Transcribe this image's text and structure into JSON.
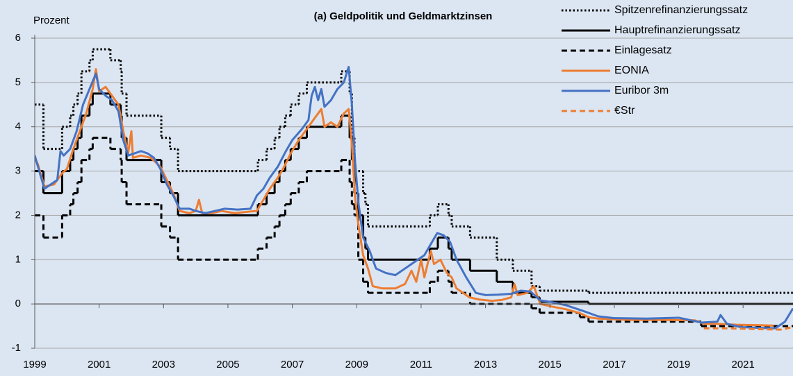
{
  "chart_data": {
    "type": "line",
    "title": "(a) Geldpolitik und Geldmarktzinsen",
    "y_label": "Prozent",
    "xlim": [
      1999,
      2022.55
    ],
    "xticks": [
      1999,
      2001,
      2003,
      2005,
      2007,
      2009,
      2011,
      2013,
      2015,
      2017,
      2019,
      2021
    ],
    "ylim": [
      -1,
      6
    ],
    "yticks": [
      -1,
      0,
      1,
      2,
      3,
      4,
      5,
      6
    ],
    "grid": true,
    "legend": "top-right",
    "series": [
      {
        "name": "Spitzenrefinanzierungssatz",
        "color": "#000000",
        "style": "dotted",
        "step": true,
        "x": [
          1999,
          1999.27,
          1999.85,
          2000.1,
          2000.2,
          2000.33,
          2000.45,
          2000.7,
          2000.8,
          2001.35,
          2001.67,
          2001.7,
          2001.85,
          2002.93,
          2003.2,
          2003.45,
          2005.93,
          2006.2,
          2006.45,
          2006.6,
          2006.78,
          2006.95,
          2007.2,
          2007.45,
          2008.52,
          2008.78,
          2008.85,
          2008.93,
          2009.2,
          2009.27,
          2009.35,
          2011.27,
          2011.52,
          2011.85,
          2011.95,
          2012.52,
          2013.35,
          2013.85,
          2014.43,
          2014.68,
          2016.2
        ],
        "values": [
          4.5,
          3.5,
          4.0,
          4.25,
          4.5,
          4.75,
          5.25,
          5.5,
          5.75,
          5.5,
          5.25,
          4.75,
          4.25,
          3.75,
          3.5,
          3.0,
          3.25,
          3.5,
          3.75,
          4.0,
          4.25,
          4.5,
          4.75,
          5.0,
          5.25,
          4.75,
          3.75,
          3.0,
          2.5,
          2.25,
          1.75,
          2.0,
          2.25,
          2.0,
          1.75,
          1.5,
          1.0,
          0.75,
          0.4,
          0.3,
          0.25
        ]
      },
      {
        "name": "Hauptrefinanzierungssatz",
        "color": "#000000",
        "style": "solid",
        "step": true,
        "x": [
          1999,
          1999.27,
          1999.85,
          2000.1,
          2000.2,
          2000.33,
          2000.45,
          2000.7,
          2000.8,
          2001.35,
          2001.67,
          2001.7,
          2001.85,
          2002.93,
          2003.2,
          2003.45,
          2005.93,
          2006.2,
          2006.45,
          2006.6,
          2006.78,
          2006.95,
          2007.2,
          2007.45,
          2008.52,
          2008.78,
          2008.85,
          2008.93,
          2009.05,
          2009.2,
          2009.27,
          2009.35,
          2011.27,
          2011.52,
          2011.85,
          2011.95,
          2012.52,
          2013.35,
          2013.85,
          2014.43,
          2014.68,
          2016.2
        ],
        "values": [
          3.0,
          2.5,
          3.0,
          3.25,
          3.5,
          3.75,
          4.25,
          4.5,
          4.75,
          4.5,
          4.25,
          3.75,
          3.25,
          2.75,
          2.5,
          2.0,
          2.25,
          2.5,
          2.75,
          3.0,
          3.25,
          3.5,
          3.75,
          4.0,
          4.25,
          3.75,
          3.25,
          2.5,
          2.0,
          1.5,
          1.25,
          1.0,
          1.25,
          1.5,
          1.25,
          1.0,
          0.75,
          0.5,
          0.25,
          0.15,
          0.05,
          0.0
        ]
      },
      {
        "name": "Einlagesatz",
        "color": "#000000",
        "style": "dashed",
        "step": true,
        "x": [
          1999,
          1999.27,
          1999.85,
          2000.1,
          2000.2,
          2000.33,
          2000.45,
          2000.7,
          2000.8,
          2001.35,
          2001.67,
          2001.7,
          2001.85,
          2002.93,
          2003.2,
          2003.45,
          2005.93,
          2006.2,
          2006.45,
          2006.6,
          2006.78,
          2006.95,
          2007.2,
          2007.45,
          2008.52,
          2008.78,
          2008.85,
          2008.93,
          2009.05,
          2009.2,
          2009.35,
          2011.27,
          2011.52,
          2011.85,
          2011.95,
          2012.52,
          2014.43,
          2014.68,
          2015.93,
          2016.2,
          2019.7
        ],
        "values": [
          2.0,
          1.5,
          2.0,
          2.25,
          2.5,
          2.75,
          3.25,
          3.5,
          3.75,
          3.5,
          3.25,
          2.75,
          2.25,
          1.75,
          1.5,
          1.0,
          1.25,
          1.5,
          1.75,
          2.0,
          2.25,
          2.5,
          2.75,
          3.0,
          3.25,
          2.75,
          2.25,
          2.0,
          1.0,
          0.5,
          0.25,
          0.5,
          0.75,
          0.5,
          0.25,
          0.0,
          -0.1,
          -0.2,
          -0.3,
          -0.4,
          -0.5
        ]
      },
      {
        "name": "EONIA",
        "color": "#ed7d31",
        "style": "solid",
        "step": false,
        "x": [
          1999.0,
          1999.1,
          1999.3,
          1999.6,
          1999.85,
          2000.0,
          2000.2,
          2000.4,
          2000.6,
          2000.8,
          2000.9,
          2001.0,
          2001.2,
          2001.4,
          2001.6,
          2001.75,
          2001.9,
          2002.0,
          2002.05,
          2002.3,
          2002.6,
          2002.9,
          2003.1,
          2003.3,
          2003.5,
          2003.8,
          2004.0,
          2004.1,
          2004.2,
          2004.5,
          2004.8,
          2005.2,
          2005.6,
          2005.9,
          2006.1,
          2006.3,
          2006.55,
          2006.75,
          2006.95,
          2007.2,
          2007.5,
          2007.7,
          2007.9,
          2008.0,
          2008.2,
          2008.4,
          2008.6,
          2008.75,
          2008.85,
          2008.95,
          2009.05,
          2009.2,
          2009.35,
          2009.5,
          2009.8,
          2010.2,
          2010.5,
          2010.7,
          2010.85,
          2011.0,
          2011.1,
          2011.3,
          2011.4,
          2011.6,
          2011.8,
          2011.95,
          2012.1,
          2012.5,
          2012.8,
          2013.2,
          2013.5,
          2013.8,
          2013.9,
          2014.0,
          2014.3,
          2014.5,
          2014.7,
          2015.0,
          2015.5,
          2015.9,
          2016.2,
          2016.5,
          2017.5,
          2018.5,
          2019.5,
          2019.8,
          2020.2,
          2020.8,
          2021.5,
          2021.95
        ],
        "values": [
          3.3,
          3.15,
          2.65,
          2.7,
          2.95,
          3.05,
          3.5,
          3.9,
          4.3,
          4.85,
          5.3,
          4.8,
          4.9,
          4.7,
          4.5,
          3.9,
          3.4,
          3.9,
          3.3,
          3.35,
          3.3,
          3.1,
          2.8,
          2.5,
          2.1,
          2.05,
          2.1,
          2.35,
          2.05,
          2.05,
          2.1,
          2.05,
          2.08,
          2.1,
          2.35,
          2.6,
          2.85,
          3.1,
          3.4,
          3.7,
          4.0,
          4.2,
          4.4,
          4.0,
          4.1,
          4.0,
          4.3,
          4.4,
          3.6,
          2.4,
          1.8,
          1.1,
          0.8,
          0.4,
          0.35,
          0.35,
          0.45,
          0.75,
          0.5,
          1.0,
          0.6,
          1.2,
          0.9,
          1.0,
          0.7,
          0.6,
          0.35,
          0.15,
          0.1,
          0.07,
          0.09,
          0.15,
          0.45,
          0.2,
          0.25,
          0.4,
          0.0,
          -0.05,
          -0.12,
          -0.2,
          -0.3,
          -0.33,
          -0.36,
          -0.36,
          -0.37,
          -0.45,
          -0.45,
          -0.47,
          -0.48,
          -0.49
        ]
      },
      {
        "name": "Euribor 3m",
        "color": "#4472c4",
        "style": "solid",
        "step": false,
        "x": [
          1999.0,
          1999.1,
          1999.3,
          1999.5,
          1999.7,
          1999.8,
          1999.9,
          2000.1,
          2000.3,
          2000.5,
          2000.7,
          2000.9,
          2001.0,
          2001.2,
          2001.4,
          2001.6,
          2001.75,
          2001.9,
          2002.1,
          2002.3,
          2002.5,
          2002.7,
          2002.9,
          2003.1,
          2003.3,
          2003.5,
          2003.8,
          2004.0,
          2004.3,
          2004.6,
          2004.9,
          2005.3,
          2005.7,
          2005.9,
          2006.1,
          2006.3,
          2006.55,
          2006.8,
          2007.0,
          2007.3,
          2007.5,
          2007.6,
          2007.7,
          2007.8,
          2007.9,
          2008.0,
          2008.2,
          2008.4,
          2008.6,
          2008.75,
          2008.85,
          2008.95,
          2009.05,
          2009.2,
          2009.4,
          2009.6,
          2009.9,
          2010.2,
          2010.5,
          2010.7,
          2010.9,
          2011.1,
          2011.3,
          2011.5,
          2011.7,
          2011.9,
          2012.1,
          2012.4,
          2012.7,
          2013.0,
          2013.4,
          2013.8,
          2014.1,
          2014.4,
          2014.7,
          2015.0,
          2015.5,
          2016.0,
          2016.5,
          2017.0,
          2018.0,
          2019.0,
          2019.7,
          2020.2,
          2020.3,
          2020.5,
          2020.9,
          2021.5,
          2022.0,
          2022.3,
          2022.55
        ],
        "values": [
          3.35,
          3.1,
          2.6,
          2.7,
          2.8,
          3.45,
          3.35,
          3.5,
          3.9,
          4.5,
          4.85,
          5.2,
          4.85,
          4.7,
          4.6,
          4.35,
          3.7,
          3.35,
          3.4,
          3.45,
          3.4,
          3.3,
          3.05,
          2.7,
          2.45,
          2.15,
          2.15,
          2.1,
          2.05,
          2.1,
          2.15,
          2.13,
          2.15,
          2.45,
          2.6,
          2.85,
          3.1,
          3.45,
          3.7,
          3.95,
          4.15,
          4.7,
          4.9,
          4.6,
          4.85,
          4.45,
          4.6,
          4.85,
          5.0,
          5.35,
          4.5,
          3.2,
          2.3,
          1.5,
          1.2,
          0.8,
          0.7,
          0.65,
          0.8,
          0.9,
          1.0,
          1.1,
          1.35,
          1.6,
          1.55,
          1.4,
          1.0,
          0.6,
          0.25,
          0.2,
          0.21,
          0.23,
          0.3,
          0.28,
          0.08,
          0.05,
          -0.03,
          -0.15,
          -0.28,
          -0.32,
          -0.33,
          -0.31,
          -0.42,
          -0.4,
          -0.25,
          -0.45,
          -0.52,
          -0.54,
          -0.55,
          -0.4,
          -0.1
        ]
      },
      {
        "name": "€Str",
        "color": "#ed7d31",
        "style": "dashed",
        "step": false,
        "x": [
          2019.78,
          2020.5,
          2021.5,
          2022.2,
          2022.55
        ],
        "values": [
          -0.55,
          -0.55,
          -0.57,
          -0.58,
          -0.52
        ]
      }
    ]
  }
}
